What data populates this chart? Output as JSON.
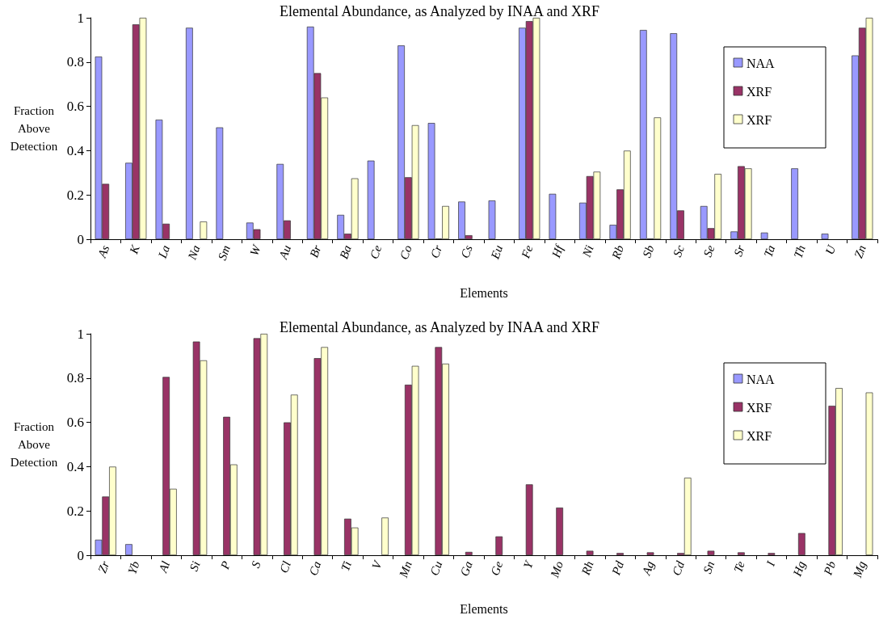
{
  "chart_data": [
    {
      "type": "bar",
      "title": "Elemental Abundance, as Analyzed by INAA and XRF",
      "xlabel": "Elements",
      "ylabel": "Fraction Above Detection",
      "categories": [
        "As",
        "K",
        "La",
        "Na",
        "Sm",
        "W",
        "Au",
        "Br",
        "Ba",
        "Ce",
        "Co",
        "Cr",
        "Cs",
        "Eu",
        "Fe",
        "Hf",
        "Ni",
        "Rb",
        "Sb",
        "Sc",
        "Se",
        "Sr",
        "Ta",
        "Th",
        "U",
        "Zn"
      ],
      "series": [
        {
          "name": "NAA",
          "color": "#9999ff",
          "values": [
            0.825,
            0.345,
            0.54,
            0.955,
            0.505,
            0.075,
            0.34,
            0.96,
            0.11,
            0.355,
            0.875,
            0.525,
            0.17,
            0.175,
            0.955,
            0.205,
            0.165,
            0.065,
            0.945,
            0.93,
            0.15,
            0.035,
            0.03,
            0.32,
            0.025,
            0.83
          ]
        },
        {
          "name": "XRF",
          "color": "#993366",
          "values": [
            0.25,
            0.97,
            0.07,
            null,
            null,
            0.045,
            0.085,
            0.75,
            0.025,
            null,
            0.28,
            0.003,
            0.018,
            null,
            0.985,
            null,
            0.285,
            0.225,
            0.003,
            0.13,
            0.05,
            0.33,
            null,
            null,
            null,
            0.955
          ]
        },
        {
          "name": "XRF",
          "color": "#ffffcc",
          "values": [
            null,
            1,
            null,
            0.08,
            null,
            null,
            null,
            0.64,
            0.275,
            null,
            0.515,
            0.15,
            null,
            null,
            1,
            null,
            0.305,
            0.4,
            0.55,
            null,
            0.295,
            0.32,
            null,
            null,
            null,
            1
          ]
        }
      ],
      "ylim": [
        0,
        1
      ],
      "yticks": [
        0,
        0.2,
        0.4,
        0.6,
        0.8,
        1
      ],
      "grid": false,
      "legend": "right"
    },
    {
      "type": "bar",
      "title": "Elemental Abundance, as Analyzed by INAA and XRF",
      "xlabel": "Elements",
      "ylabel": "Fraction Above Detection",
      "categories": [
        "Zr",
        "Yb",
        "Al",
        "Si",
        "P",
        "S",
        "Cl",
        "Ca",
        "Ti",
        "V",
        "Mn",
        "Cu",
        "Ga",
        "Ge",
        "Y",
        "Mo",
        "Rh",
        "Pd",
        "Ag",
        "Cd",
        "Sn",
        "Te",
        "I",
        "Hg",
        "Pb",
        "Mg"
      ],
      "series": [
        {
          "name": "NAA",
          "color": "#9999ff",
          "values": [
            0.07,
            0.05,
            null,
            null,
            null,
            null,
            null,
            null,
            null,
            null,
            null,
            null,
            null,
            null,
            null,
            null,
            null,
            null,
            null,
            null,
            null,
            null,
            null,
            null,
            null,
            null
          ]
        },
        {
          "name": "XRF",
          "color": "#993366",
          "values": [
            0.265,
            null,
            0.805,
            0.965,
            0.625,
            0.98,
            0.6,
            0.89,
            0.165,
            null,
            0.77,
            0.94,
            0.015,
            0.085,
            0.32,
            0.215,
            0.02,
            0.01,
            0.013,
            0.01,
            0.02,
            0.013,
            0.01,
            0.1,
            0.675,
            null
          ]
        },
        {
          "name": "XRF",
          "color": "#ffffcc",
          "values": [
            0.4,
            null,
            0.3,
            0.88,
            0.41,
            1,
            0.725,
            0.94,
            0.125,
            0.17,
            0.855,
            0.865,
            null,
            null,
            null,
            null,
            null,
            null,
            null,
            0.35,
            null,
            null,
            null,
            null,
            0.755,
            0.735
          ]
        }
      ],
      "ylim": [
        0,
        1
      ],
      "yticks": [
        0,
        0.2,
        0.4,
        0.6,
        0.8,
        1
      ],
      "grid": false,
      "legend": "right"
    }
  ]
}
